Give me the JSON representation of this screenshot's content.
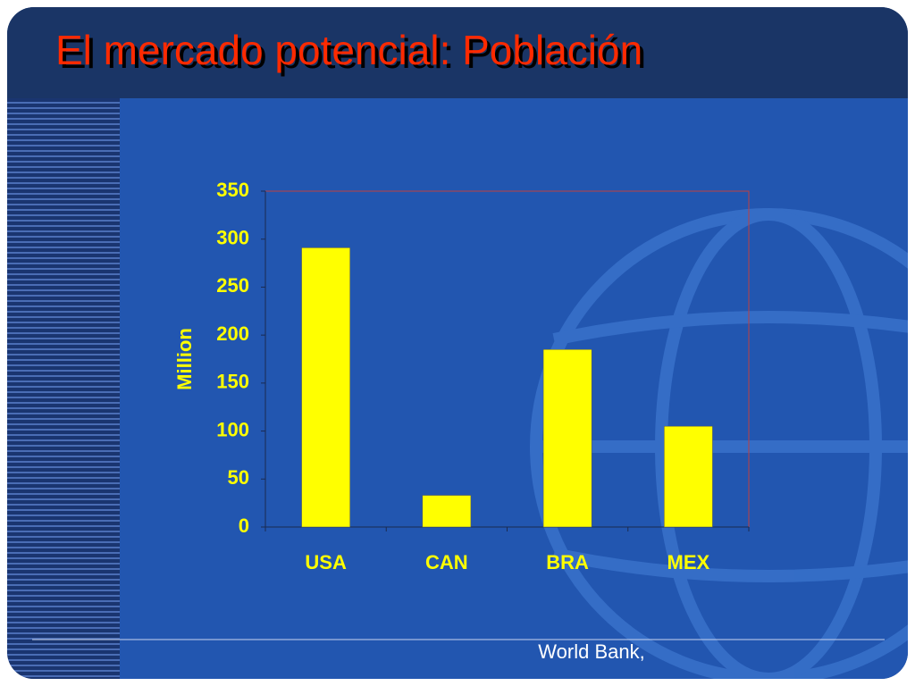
{
  "chart_data": {
    "type": "bar",
    "title": "El mercado potencial: Población",
    "y_label": "Million",
    "categories": [
      "USA",
      "CAN",
      "BRA",
      "MEX"
    ],
    "values": [
      291,
      33,
      185,
      105
    ],
    "color": "#ffff00",
    "ylim": [
      0,
      350
    ],
    "yticks": [
      0,
      50,
      100,
      150,
      200,
      250,
      300,
      350
    ],
    "source": "World Bank,"
  }
}
